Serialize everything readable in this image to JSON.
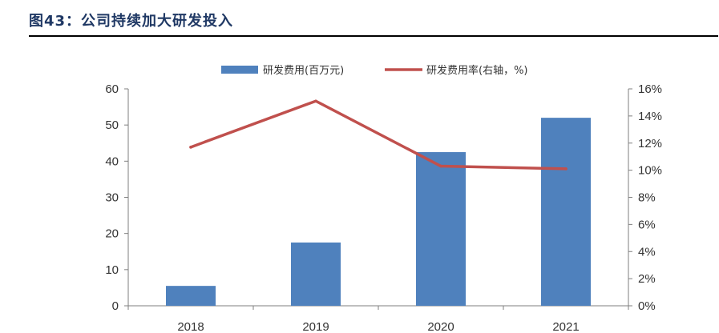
{
  "figure_title": "图43：公司持续加大研发投入",
  "chart_data": {
    "type": "bar",
    "categories": [
      "2018",
      "2019",
      "2020",
      "2021"
    ],
    "series": [
      {
        "name": "研发费用(百万元)",
        "kind": "bar",
        "axis": "left",
        "color": "#4f81bd",
        "values": [
          5.5,
          17.5,
          42.5,
          52.0
        ]
      },
      {
        "name": "研发费用率(右轴，%)",
        "kind": "line",
        "axis": "right",
        "color": "#c0504d",
        "values": [
          11.7,
          15.1,
          10.3,
          10.1
        ]
      }
    ],
    "left_axis": {
      "ylim": [
        0,
        60
      ],
      "ticks": [
        "0",
        "10",
        "20",
        "30",
        "40",
        "50",
        "60"
      ]
    },
    "right_axis": {
      "ylim": [
        0,
        16
      ],
      "ticks": [
        "0%",
        "2%",
        "4%",
        "6%",
        "8%",
        "10%",
        "12%",
        "14%",
        "16%"
      ]
    },
    "grid": false,
    "legend": "top-center"
  }
}
